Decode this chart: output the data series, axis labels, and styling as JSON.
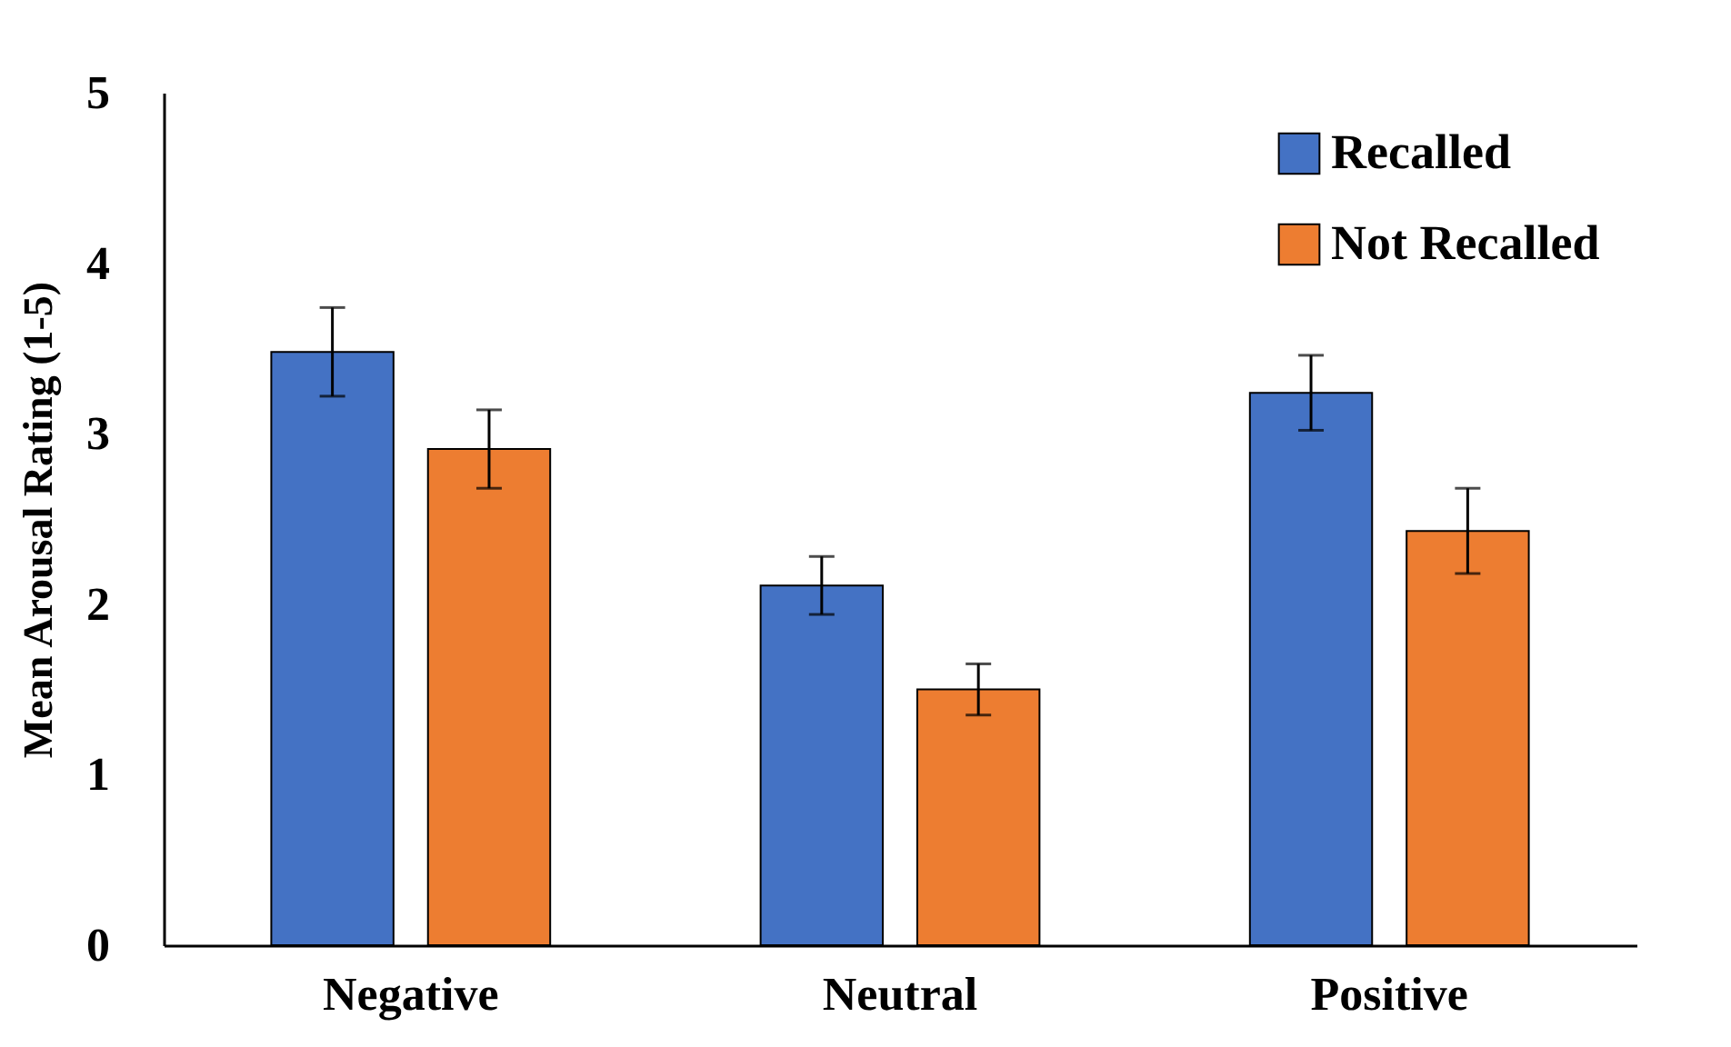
{
  "chart_data": {
    "type": "bar",
    "ylabel": "Mean Arousal Rating (1-5)",
    "categories": [
      "Negative",
      "Neutral",
      "Positive"
    ],
    "series": [
      {
        "name": "Recalled",
        "color": "#4472c4",
        "values": [
          3.48,
          2.11,
          3.24
        ],
        "errors": [
          0.26,
          0.17,
          0.22
        ]
      },
      {
        "name": "Not Recalled",
        "color": "#ed7d31",
        "values": [
          2.91,
          1.5,
          2.43
        ],
        "errors": [
          0.23,
          0.15,
          0.25
        ]
      }
    ],
    "ylim": [
      0,
      5
    ],
    "yticks": [
      0,
      1,
      2,
      3,
      4,
      5
    ],
    "grid": false,
    "legend": "top right"
  }
}
